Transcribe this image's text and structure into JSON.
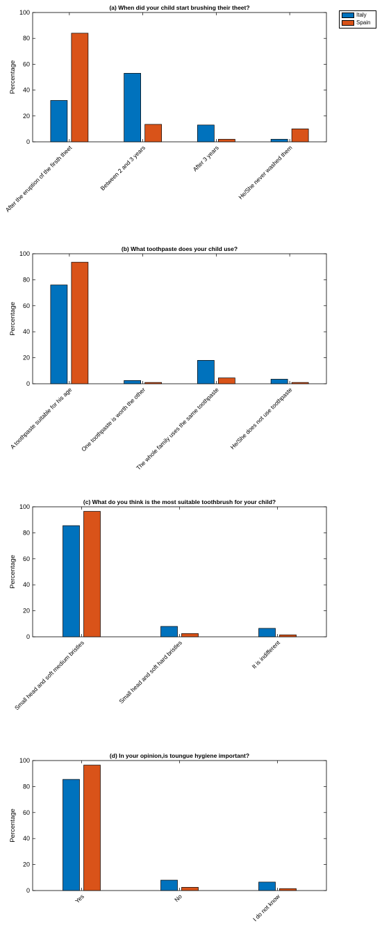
{
  "legend": {
    "items": [
      {
        "label": "Italy",
        "color": "#0072BD"
      },
      {
        "label": "Spain",
        "color": "#D95319"
      }
    ]
  },
  "chart_data": [
    {
      "type": "bar",
      "title": "(a) When did your child start brushing their theet?",
      "xlabel": "",
      "ylabel": "Percentage",
      "ylim": [
        0,
        100
      ],
      "yticks": [
        0,
        20,
        40,
        60,
        80,
        100
      ],
      "categories": [
        "After the eruption of the firsth theet",
        "Between 2 and 3 years",
        "After 3 years",
        "He/She never washed them"
      ],
      "series": [
        {
          "name": "Italy",
          "values": [
            32,
            53,
            13,
            2
          ]
        },
        {
          "name": "Spain",
          "values": [
            84,
            13.5,
            2,
            10
          ]
        }
      ],
      "legend": "top-right",
      "grid": false
    },
    {
      "type": "bar",
      "title": "(b) What toothpaste does your child use?",
      "xlabel": "",
      "ylabel": "Percentage",
      "ylim": [
        0,
        100
      ],
      "yticks": [
        0,
        20,
        40,
        60,
        80,
        100
      ],
      "categories": [
        "A toothpaste suitable for his age",
        "One toothpaste is worth the other",
        "The whole family uses the same toothpaste",
        "He/She does not use toothpaste"
      ],
      "series": [
        {
          "name": "Italy",
          "values": [
            76,
            2.5,
            18,
            3.5
          ]
        },
        {
          "name": "Spain",
          "values": [
            93.5,
            1,
            4.5,
            1
          ]
        }
      ],
      "grid": false
    },
    {
      "type": "bar",
      "title": "(c) What do you think is the most suitable toothbrush for your child?",
      "xlabel": "",
      "ylabel": "Percentage",
      "ylim": [
        0,
        100
      ],
      "yticks": [
        0,
        20,
        40,
        60,
        80,
        100
      ],
      "categories": [
        "Small head and soft medium bristles",
        "Small head and soft hard bristles",
        "It is indifferent"
      ],
      "series": [
        {
          "name": "Italy",
          "values": [
            85.5,
            8,
            6.5
          ]
        },
        {
          "name": "Spain",
          "values": [
            96.5,
            2.5,
            1.5
          ]
        }
      ],
      "grid": false
    },
    {
      "type": "bar",
      "title": "(d) In your opinion,is toungue hygiene important?",
      "xlabel": "",
      "ylabel": "Percentage",
      "ylim": [
        0,
        100
      ],
      "yticks": [
        0,
        20,
        40,
        60,
        80,
        100
      ],
      "categories": [
        "Yes",
        "No",
        "I do not know"
      ],
      "series": [
        {
          "name": "Italy",
          "values": [
            85.5,
            8,
            6.5
          ]
        },
        {
          "name": "Spain",
          "values": [
            96.5,
            2.5,
            1.5
          ]
        }
      ],
      "grid": false
    }
  ]
}
